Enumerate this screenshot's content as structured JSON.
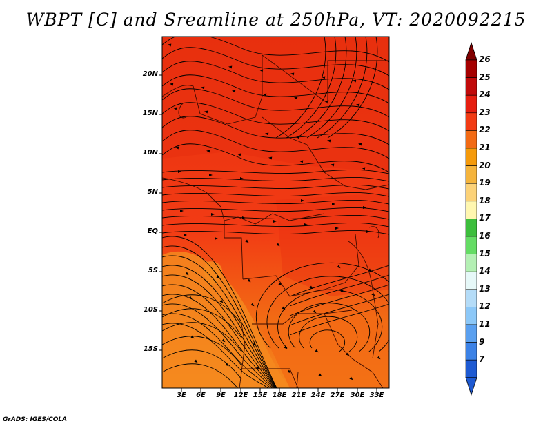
{
  "title": "WBPT [C] and Sreamline at 250hPa, VT: 2020092215",
  "credit": "GrADS: IGES/COLA",
  "map": {
    "lat_ticks": [
      "20N",
      "15N",
      "10N",
      "5N",
      "EQ",
      "5S",
      "10S",
      "15S"
    ],
    "lon_ticks": [
      "3E",
      "6E",
      "9E",
      "12E",
      "15E",
      "18E",
      "21E",
      "24E",
      "27E",
      "30E",
      "33E"
    ],
    "field_colors": {
      "dominant": "#f23b14",
      "warmer": "#e8300f",
      "cooler": "#f26a14",
      "coolest": "#f58a1e"
    },
    "streamline_color": "#000000",
    "border_color": "#3a0a00"
  },
  "colorbar": {
    "labels": [
      "26",
      "25",
      "24",
      "23",
      "22",
      "21",
      "20",
      "19",
      "18",
      "17",
      "16",
      "15",
      "14",
      "13",
      "12",
      "11",
      "9",
      "7"
    ],
    "colors": [
      "#a50000",
      "#c10a0a",
      "#e61e10",
      "#f23b14",
      "#f26a14",
      "#f59a0a",
      "#f5b43c",
      "#fcd278",
      "#fff7b0",
      "#3cbe3c",
      "#64dc64",
      "#b4f0b4",
      "#e6f8f8",
      "#b4dcf8",
      "#8cc8f8",
      "#5aa0f0",
      "#3c82e6",
      "#1e5ad2"
    ],
    "top_arrow_color": "#800000",
    "bottom_arrow_color": "#1e5ad2"
  }
}
